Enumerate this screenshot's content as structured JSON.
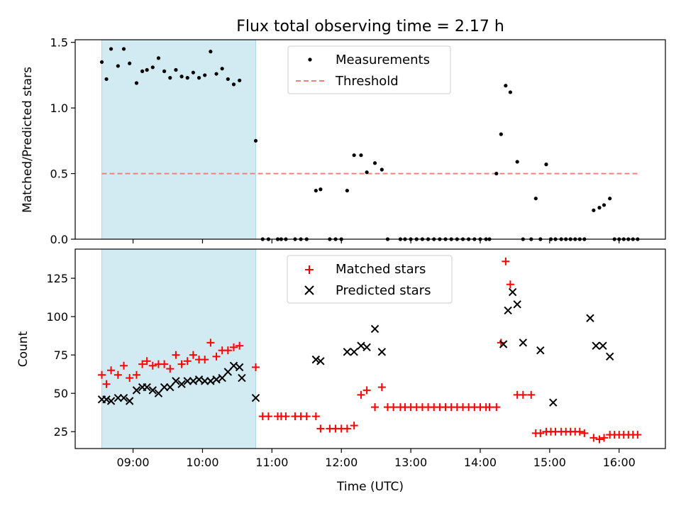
{
  "chart_data": [
    {
      "type": "scatter",
      "title": "Flux total observing time = 2.17 h",
      "xlabel": "",
      "ylabel": "Matched/Predicted stars",
      "xlim": [
        490,
        1000
      ],
      "ylim": [
        0,
        1.52
      ],
      "yticks": [
        0.0,
        0.5,
        1.0,
        1.5
      ],
      "ytick_labels": [
        "0.0",
        "0.5",
        "1.0",
        "1.5"
      ],
      "xticks": [
        540,
        600,
        660,
        720,
        780,
        840,
        900,
        960
      ],
      "shaded_region": {
        "x_start": 513,
        "x_end": 646,
        "color": "#add8e6"
      },
      "threshold": {
        "name": "Threshold",
        "y": 0.5,
        "x_start": 513,
        "x_end": 978,
        "color": "#f08080"
      },
      "legend": [
        "Measurements",
        "Threshold"
      ],
      "legend_position": "top-center",
      "series": [
        {
          "name": "Measurements",
          "color": "#000000",
          "x": [
            513,
            517,
            521,
            527,
            532,
            537,
            543,
            548,
            552,
            557,
            562,
            567,
            572,
            577,
            582,
            587,
            592,
            597,
            602,
            607,
            612,
            617,
            622,
            627,
            632,
            646,
            652,
            657,
            665,
            668,
            672,
            680,
            685,
            690,
            698,
            702,
            710,
            715,
            720,
            725,
            731,
            737,
            742,
            749,
            755,
            760,
            771,
            775,
            780,
            785,
            790,
            795,
            800,
            805,
            810,
            815,
            820,
            825,
            830,
            835,
            840,
            845,
            848,
            854,
            858,
            862,
            866,
            872,
            877,
            884,
            888,
            892,
            897,
            901,
            905,
            910,
            914,
            918,
            922,
            926,
            930,
            938,
            943,
            947,
            952,
            956,
            960,
            964,
            968,
            972,
            976
          ],
          "y": [
            1.35,
            1.22,
            1.45,
            1.32,
            1.45,
            1.34,
            1.19,
            1.28,
            1.29,
            1.31,
            1.38,
            1.28,
            1.23,
            1.29,
            1.24,
            1.23,
            1.27,
            1.23,
            1.25,
            1.43,
            1.26,
            1.3,
            1.22,
            1.18,
            1.21,
            0.75,
            0.0,
            0.0,
            0.0,
            0.0,
            0.0,
            0.0,
            0.0,
            0.0,
            0.37,
            0.38,
            0.0,
            0.0,
            0.0,
            0.37,
            0.64,
            0.64,
            0.51,
            0.58,
            0.53,
            0.0,
            0.0,
            0.0,
            0.0,
            0.0,
            0.0,
            0.0,
            0.0,
            0.0,
            0.0,
            0.0,
            0.0,
            0.0,
            0.0,
            0.0,
            0.0,
            0.0,
            0.0,
            0.5,
            0.8,
            1.17,
            1.12,
            0.59,
            0.0,
            0.0,
            0.31,
            0.0,
            0.57,
            0.0,
            0.0,
            0.0,
            0.0,
            0.0,
            0.0,
            0.0,
            0.0,
            0.22,
            0.24,
            0.26,
            0.31,
            0.0,
            0.0,
            0.0,
            0.0,
            0.0,
            0.0
          ]
        }
      ]
    },
    {
      "type": "scatter",
      "title": "",
      "xlabel": "Time (UTC)",
      "ylabel": "Count",
      "xlim": [
        490,
        1000
      ],
      "ylim": [
        14,
        144
      ],
      "yticks": [
        25,
        50,
        75,
        100,
        125
      ],
      "ytick_labels": [
        "25",
        "50",
        "75",
        "100",
        "125"
      ],
      "xticks": [
        540,
        600,
        660,
        720,
        780,
        840,
        900,
        960
      ],
      "xtick_labels": [
        "09:00",
        "10:00",
        "11:00",
        "12:00",
        "13:00",
        "14:00",
        "15:00",
        "16:00"
      ],
      "shaded_region": {
        "x_start": 513,
        "x_end": 646,
        "color": "#add8e6"
      },
      "legend": [
        "Matched stars",
        "Predicted stars"
      ],
      "legend_position": "top-center",
      "series": [
        {
          "name": "Matched stars",
          "marker": "+",
          "color": "#ff0000",
          "x": [
            513,
            517,
            521,
            527,
            532,
            537,
            543,
            548,
            552,
            557,
            562,
            567,
            572,
            577,
            582,
            587,
            592,
            597,
            602,
            607,
            612,
            617,
            622,
            627,
            632,
            646,
            652,
            657,
            665,
            668,
            672,
            680,
            685,
            690,
            698,
            702,
            710,
            715,
            720,
            725,
            731,
            737,
            742,
            749,
            755,
            760,
            765,
            771,
            775,
            780,
            785,
            790,
            795,
            800,
            805,
            810,
            815,
            820,
            825,
            830,
            835,
            840,
            845,
            848,
            854,
            858,
            862,
            866,
            872,
            877,
            884,
            888,
            892,
            897,
            901,
            905,
            910,
            914,
            918,
            922,
            926,
            930,
            938,
            943,
            947,
            952,
            956,
            960,
            964,
            968,
            972,
            976
          ],
          "y": [
            62,
            56,
            65,
            62,
            68,
            60,
            62,
            69,
            71,
            68,
            69,
            69,
            66,
            75,
            69,
            71,
            75,
            72,
            72,
            83,
            74,
            78,
            78,
            80,
            81,
            67,
            35,
            35,
            35,
            35,
            35,
            35,
            35,
            35,
            35,
            27,
            27,
            27,
            27,
            27,
            29,
            49,
            52,
            41,
            54,
            41,
            41,
            41,
            41,
            41,
            41,
            41,
            41,
            41,
            41,
            41,
            41,
            41,
            41,
            41,
            41,
            41,
            41,
            41,
            41,
            83,
            136,
            121,
            49,
            49,
            49,
            24,
            24,
            25,
            25,
            25,
            25,
            25,
            25,
            25,
            25,
            24,
            21,
            20,
            21,
            23,
            23,
            23,
            23,
            23,
            23,
            23
          ]
        },
        {
          "name": "Predicted stars",
          "marker": "x",
          "color": "#000000",
          "x": [
            513,
            517,
            521,
            527,
            532,
            537,
            543,
            548,
            552,
            557,
            562,
            567,
            572,
            577,
            582,
            587,
            592,
            597,
            602,
            607,
            612,
            617,
            622,
            627,
            632,
            634,
            646,
            698,
            702,
            725,
            731,
            737,
            742,
            749,
            755,
            860,
            864,
            868,
            872,
            877,
            892,
            903,
            935,
            940,
            946,
            952
          ],
          "y": [
            46,
            46,
            45,
            47,
            47,
            45,
            52,
            54,
            54,
            52,
            50,
            54,
            54,
            58,
            56,
            58,
            58,
            59,
            58,
            58,
            59,
            60,
            64,
            68,
            67,
            60,
            47,
            72,
            71,
            77,
            77,
            81,
            80,
            92,
            77,
            82,
            104,
            116,
            108,
            83,
            78,
            44,
            99,
            81,
            81,
            74
          ]
        }
      ]
    }
  ]
}
